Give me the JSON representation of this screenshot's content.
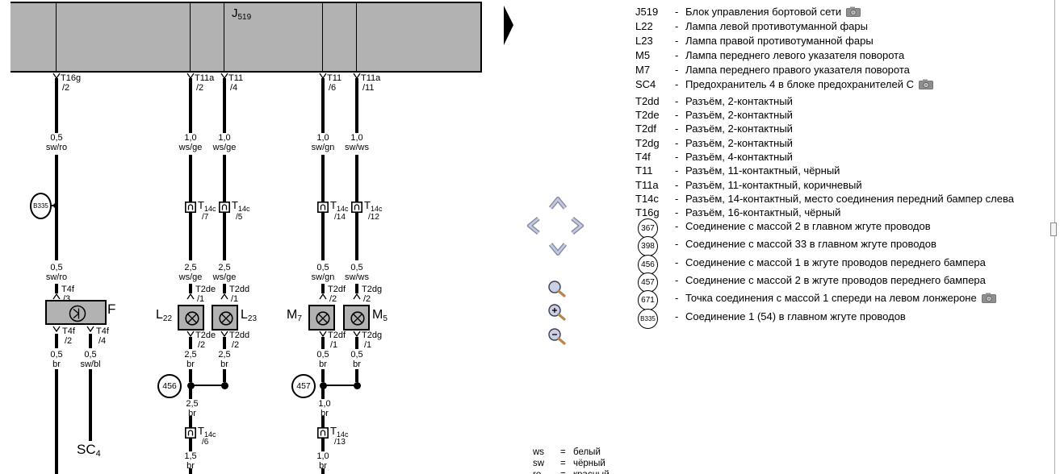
{
  "diagram": {
    "control_unit": {
      "main": "J",
      "sub": "519"
    },
    "columns": [
      {
        "top": {
          "name": "T16g",
          "pin": "/2"
        },
        "wire1": {
          "size": "0,5",
          "color": "sw/ro"
        },
        "mid": null,
        "wire2": {
          "size": "0,5",
          "color": "sw/ro"
        },
        "comp_pin": {
          "name": "T4f",
          "pin": "/3"
        }
      },
      {
        "top": {
          "name": "T11a",
          "pin": "/2"
        },
        "wire1": {
          "size": "1,0",
          "color": "ws/ge"
        },
        "mid": {
          "main": "T",
          "sub": "14c",
          "pin": "/7"
        },
        "wire2": {
          "size": "2,5",
          "color": "ws/ge"
        },
        "comp_pin": {
          "name": "T2de",
          "pin": "/1"
        }
      },
      {
        "top": {
          "name": "T11",
          "pin": "/4"
        },
        "wire1": {
          "size": "1,0",
          "color": "ws/ge"
        },
        "mid": {
          "main": "T",
          "sub": "14c",
          "pin": "/5"
        },
        "wire2": {
          "size": "2,5",
          "color": "ws/ge"
        },
        "comp_pin": {
          "name": "T2dd",
          "pin": "/1"
        }
      },
      {
        "top": {
          "name": "T11",
          "pin": "/6"
        },
        "wire1": {
          "size": "1,0",
          "color": "sw/gn"
        },
        "mid": {
          "main": "T",
          "sub": "14c",
          "pin": "/14"
        },
        "wire2": {
          "size": "0,5",
          "color": "sw/gn"
        },
        "comp_pin": {
          "name": "T2df",
          "pin": "/2"
        }
      },
      {
        "top": {
          "name": "T11a",
          "pin": "/11"
        },
        "wire1": {
          "size": "1,0",
          "color": "sw/ws"
        },
        "mid": {
          "main": "T",
          "sub": "14c",
          "pin": "/12"
        },
        "wire2": {
          "size": "0,5",
          "color": "sw/ws"
        },
        "comp_pin": {
          "name": "T2dg",
          "pin": "/2"
        }
      }
    ],
    "b335": {
      "label": "B335"
    },
    "f_unit": {
      "label": "F",
      "outs": [
        {
          "name": "T4f",
          "pin": "/2",
          "size": "0,5",
          "color": "br"
        },
        {
          "name": "T4f",
          "pin": "/4",
          "size": "0,5",
          "color": "sw/bl"
        }
      ],
      "fuse": {
        "main": "SC",
        "sub": "4"
      }
    },
    "lamps": [
      {
        "main": "L",
        "sub": "22",
        "out": {
          "name": "T2de",
          "pin": "/2",
          "size": "2,5",
          "color": "br"
        }
      },
      {
        "main": "L",
        "sub": "23",
        "out": {
          "name": "T2dd",
          "pin": "/2",
          "size": "2,5",
          "color": "br"
        }
      },
      {
        "main": "M",
        "sub": "7",
        "out": {
          "name": "T2df",
          "pin": "/1",
          "size": "0,5",
          "color": "br"
        }
      },
      {
        "main": "M",
        "sub": "5",
        "out": {
          "name": "T2dg",
          "pin": "/1",
          "size": "0,5",
          "color": "br"
        }
      }
    ],
    "junctions": [
      {
        "id": "456",
        "tail": {
          "size": "2,5",
          "color": "br"
        },
        "bottom_connector": {
          "main": "T",
          "sub": "14c",
          "pin": "/6"
        },
        "tail2": {
          "size": "1,5",
          "color": "br"
        }
      },
      {
        "id": "457",
        "tail": {
          "size": "1,0",
          "color": "br"
        },
        "bottom_connector": {
          "main": "T",
          "sub": "14c",
          "pin": "/13"
        },
        "tail2": {
          "size": "1,0",
          "color": "br"
        }
      }
    ]
  },
  "legend": {
    "rows": [
      {
        "key": "J519",
        "desc": "Блок управления бортовой сети",
        "camera": true
      },
      {
        "key": "L22",
        "desc": "Лампа левой противотуманной фары"
      },
      {
        "key": "L23",
        "desc": "Лампа правой противотуманной фары"
      },
      {
        "key": "M5",
        "desc": "Лампа переднего левого указателя поворота"
      },
      {
        "key": "M7",
        "desc": "Лампа переднего правого указателя поворота"
      },
      {
        "key": "SC4",
        "desc": "Предохранитель 4 в блоке предохранителей C",
        "camera": true
      },
      {
        "key": "T2dd",
        "desc": "Разъём, 2-контактный"
      },
      {
        "key": "T2de",
        "desc": "Разъём, 2-контактный"
      },
      {
        "key": "T2df",
        "desc": "Разъём, 2-контактный"
      },
      {
        "key": "T2dg",
        "desc": "Разъём, 2-контактный"
      },
      {
        "key": "T4f",
        "desc": "Разъём, 4-контактный"
      },
      {
        "key": "T11",
        "desc": "Разъём, 11-контактный, чёрный"
      },
      {
        "key": "T11a",
        "desc": "Разъём, 11-контактный, коричневый"
      },
      {
        "key": "T14c",
        "desc": "Разъём, 14-контактный, место соединения передний бампер слева"
      },
      {
        "key": "T16g",
        "desc": "Разъём, 16-контактный, чёрный"
      },
      {
        "key": "367",
        "circle": true,
        "desc": "Соединение с массой 2 в главном жгуте проводов"
      },
      {
        "key": "398",
        "circle": true,
        "desc": "Соединение с массой 33 в главном жгуте проводов"
      },
      {
        "key": "456",
        "circle": true,
        "desc": "Соединение с массой 1 в жгуте проводов переднего бампера"
      },
      {
        "key": "457",
        "circle": true,
        "desc": "Соединение с массой 2 в жгуте проводов переднего бампера"
      },
      {
        "key": "671",
        "circle": true,
        "desc": "Точка соединения с массой 1 спереди на левом лонжероне",
        "camera": true
      },
      {
        "key": "B335",
        "circle": true,
        "desc": "Соединение 1 (54) в главном жгуте проводов"
      }
    ]
  },
  "color_legend": [
    {
      "abbr": "ws",
      "eq": "=",
      "name": "белый"
    },
    {
      "abbr": "sw",
      "eq": "=",
      "name": "чёрный"
    },
    {
      "abbr": "ro",
      "eq": "=",
      "name": "красный"
    }
  ],
  "nav": {
    "next_arrow": "next-page-arrow",
    "pan": [
      "pan-up",
      "pan-left",
      "pan-right",
      "pan-down"
    ],
    "zoom": [
      "zoom-tool",
      "zoom-in",
      "zoom-out"
    ]
  },
  "colors": {
    "component_fill": "#b2b2b2",
    "wire": "#000000",
    "pan_arrow_dark": "#878ca8",
    "pan_arrow_light": "#c6cade",
    "magnifier_lens": "#ccd0e4",
    "magnifier_handle": "#b9854f",
    "camera_gray": "#8f8f8f"
  }
}
